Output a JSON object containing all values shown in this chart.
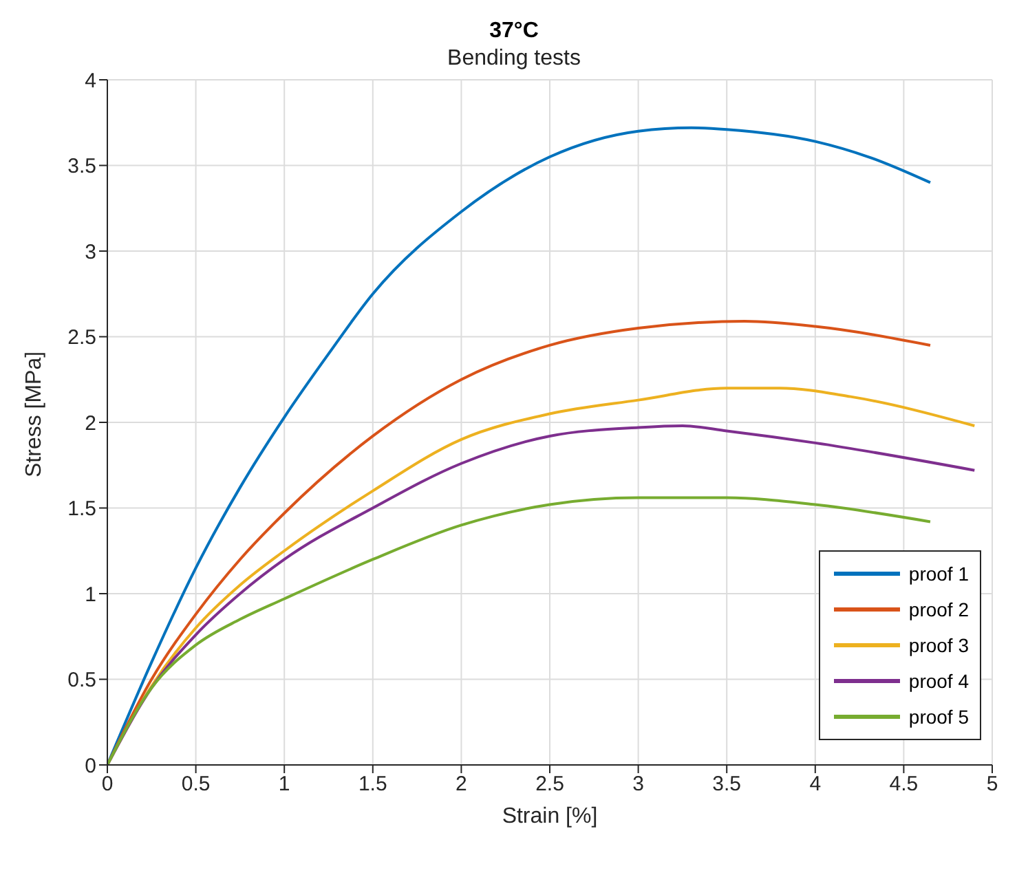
{
  "chart_data": {
    "type": "line",
    "title": "37°C",
    "subtitle": "Bending tests",
    "xlabel": "Strain [%]",
    "ylabel": "Stress [MPa]",
    "xlim": [
      0,
      5
    ],
    "xticks": [
      0,
      0.5,
      1,
      1.5,
      2,
      2.5,
      3,
      3.5,
      4,
      4.5,
      5
    ],
    "ylim": [
      0,
      4
    ],
    "yticks": [
      0,
      0.5,
      1,
      1.5,
      2,
      2.5,
      3,
      3.5,
      4
    ],
    "grid": true,
    "legend": "bottom right",
    "marker": "none",
    "line_style": "solid",
    "series": [
      {
        "name": "proof 1",
        "color": "#0072bd",
        "x": [
          0,
          0.25,
          0.5,
          0.75,
          1,
          1.25,
          1.5,
          2,
          2.5,
          3,
          3.3,
          3.5,
          4,
          4.3,
          4.65
        ],
        "values": [
          0,
          0.6,
          1.15,
          1.62,
          2.03,
          2.4,
          2.75,
          3.23,
          3.55,
          3.7,
          3.72,
          3.71,
          3.64,
          3.55,
          3.4
        ]
      },
      {
        "name": "proof 2",
        "color": "#d95319",
        "x": [
          0,
          0.25,
          0.5,
          0.75,
          1,
          1.5,
          2,
          2.5,
          3,
          3.6,
          4,
          4.65
        ],
        "values": [
          0,
          0.5,
          0.88,
          1.2,
          1.47,
          1.92,
          2.25,
          2.45,
          2.55,
          2.59,
          2.56,
          2.45
        ]
      },
      {
        "name": "proof 3",
        "color": "#edb120",
        "x": [
          0,
          0.25,
          0.5,
          0.75,
          1,
          1.5,
          2,
          2.5,
          3,
          3.5,
          3.8,
          4.2,
          4.9
        ],
        "values": [
          0,
          0.46,
          0.8,
          1.05,
          1.25,
          1.6,
          1.9,
          2.05,
          2.13,
          2.2,
          2.2,
          2.15,
          1.98
        ]
      },
      {
        "name": "proof 4",
        "color": "#7e2f8e",
        "x": [
          0,
          0.25,
          0.5,
          0.75,
          1,
          1.5,
          2,
          2.5,
          3,
          3.25,
          3.5,
          4,
          4.9
        ],
        "values": [
          0,
          0.45,
          0.76,
          1.0,
          1.2,
          1.5,
          1.76,
          1.92,
          1.97,
          1.98,
          1.95,
          1.88,
          1.72
        ]
      },
      {
        "name": "proof 5",
        "color": "#77ac30",
        "x": [
          0,
          0.25,
          0.5,
          0.75,
          1,
          1.5,
          2,
          2.5,
          3,
          3.5,
          4,
          4.65
        ],
        "values": [
          0,
          0.45,
          0.7,
          0.85,
          0.97,
          1.2,
          1.4,
          1.52,
          1.56,
          1.56,
          1.52,
          1.42
        ]
      }
    ]
  }
}
